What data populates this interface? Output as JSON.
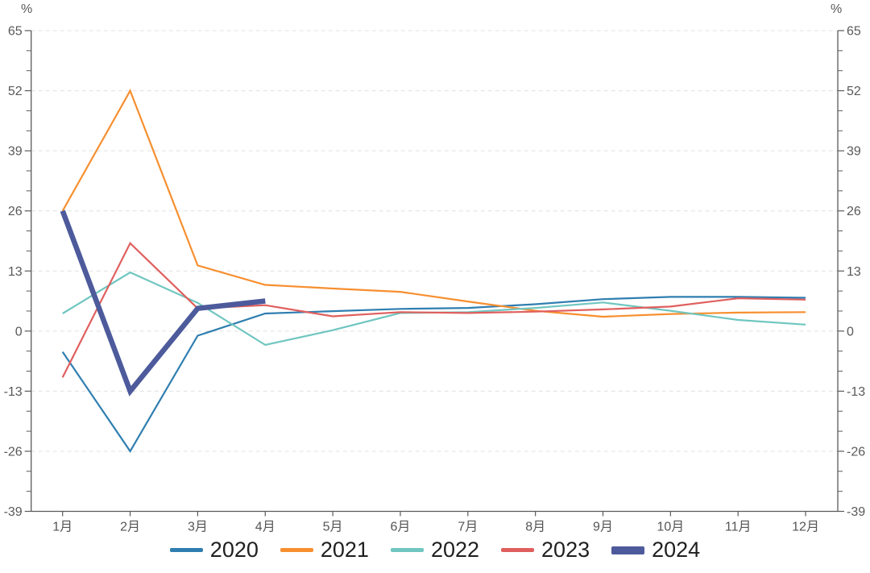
{
  "axes": {
    "unit_left": "%",
    "unit_right": "%"
  },
  "chart_data": {
    "type": "line",
    "title": "",
    "categories": [
      "1月",
      "2月",
      "3月",
      "4月",
      "5月",
      "6月",
      "7月",
      "8月",
      "9月",
      "10月",
      "11月",
      "12月"
    ],
    "y_axis": {
      "min": -39,
      "max": 65,
      "interval": 13,
      "ticks": [
        65,
        52,
        39,
        26,
        13,
        0,
        -13,
        -26,
        -39
      ],
      "minor_ticks_per_interval": 2,
      "unit": "%"
    },
    "x_axis": {
      "label_suffix": "月"
    },
    "grid": "horizontal-dashed",
    "legend_position": "bottom",
    "series": [
      {
        "name": "2020",
        "color": "#2f7eb0",
        "line_width": 2.2,
        "values": [
          -4.5,
          -26,
          -1,
          3.8,
          4.3,
          4.8,
          5,
          5.8,
          6.9,
          7.4,
          7.4,
          7.2
        ]
      },
      {
        "name": "2021",
        "color": "#f78f2f",
        "line_width": 2.2,
        "values": [
          26,
          52,
          14.2,
          10,
          9.2,
          8.5,
          6.4,
          4.4,
          3.1,
          3.7,
          4,
          4.1
        ]
      },
      {
        "name": "2022",
        "color": "#70c6c0",
        "line_width": 2.2,
        "values": [
          3.8,
          12.7,
          6.1,
          -3,
          0.2,
          3.9,
          4.1,
          5,
          6.2,
          4.4,
          2.4,
          1.4
        ]
      },
      {
        "name": "2023",
        "color": "#e05f5e",
        "line_width": 2.2,
        "values": [
          -10,
          19,
          4.9,
          5.6,
          3.2,
          4.1,
          3.9,
          4.2,
          4.7,
          5.3,
          7.1,
          6.8
        ]
      },
      {
        "name": "2024",
        "color": "#4d5a9b",
        "line_width": 6.5,
        "values": [
          26,
          -13,
          4.9,
          6.5
        ]
      }
    ],
    "style": {
      "axis_color": "#5a5a5a",
      "grid_color": "#e0e0e0",
      "tick_label_color": "#595959",
      "month_label_color": "#555555",
      "legend_text_color": "#1f1f1f"
    }
  }
}
